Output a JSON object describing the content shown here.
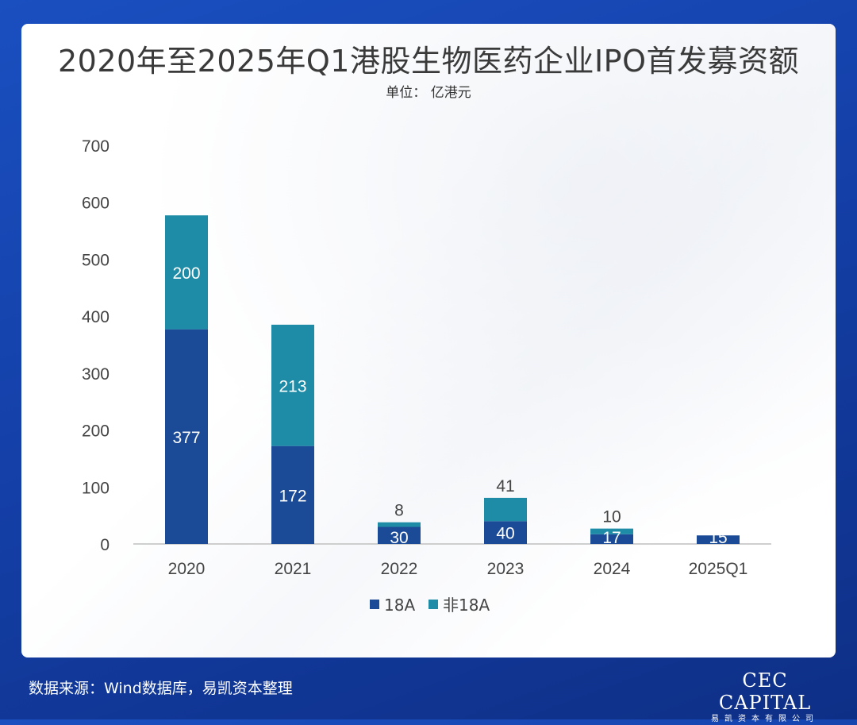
{
  "page": {
    "title": "2020年至2025年Q1港股生物医药企业IPO首发募资额",
    "unit": "单位： 亿港元",
    "source": "数据来源：Wind数据库，易凯资本整理",
    "logo_main": "CEC CAPITAL",
    "logo_sub": "易凯资本有限公司"
  },
  "colors": {
    "series_18a": "#1b4a96",
    "series_non18a": "#1e8ca6",
    "axis": "#bfbfbf",
    "tick_text": "#444444"
  },
  "chart_data": {
    "type": "bar",
    "stacked": true,
    "categories": [
      "2020",
      "2021",
      "2022",
      "2023",
      "2024",
      "2025Q1"
    ],
    "series": [
      {
        "name": "18A",
        "values": [
          377,
          172,
          30,
          40,
          17,
          15
        ],
        "labels": [
          "377",
          "172",
          "30",
          "40",
          "17",
          "15"
        ]
      },
      {
        "name": "非18A",
        "values": [
          200,
          213,
          8,
          41,
          10,
          0
        ],
        "labels": [
          "200",
          "213",
          "8",
          "41",
          "10",
          ""
        ]
      }
    ],
    "ylim": [
      0,
      700
    ],
    "yticks": [
      0,
      100,
      200,
      300,
      400,
      500,
      600,
      700
    ],
    "grid": false,
    "legend": "bottom-center"
  }
}
